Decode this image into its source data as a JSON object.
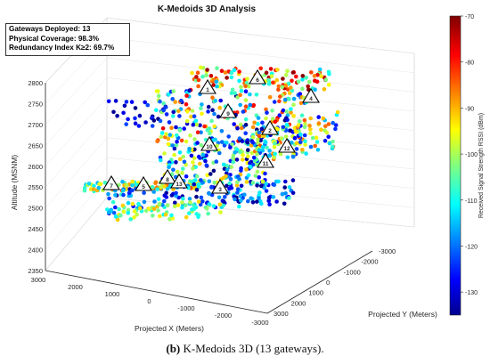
{
  "chart_data": {
    "type": "scatter",
    "title": "K-Medoids 3D Analysis",
    "xlabel": "Projected X (Meters)",
    "ylabel": "Projected Y (Meters)",
    "zlabel": "Altitude (MSNM)",
    "x_ticks": [
      "3000",
      "2000",
      "1000",
      "0",
      "-1000",
      "-2000",
      "-3000"
    ],
    "y_ticks": [
      "-3000",
      "-2000",
      "-1000",
      "0",
      "1000",
      "2000",
      "3000"
    ],
    "z_ticks": [
      "2350",
      "2400",
      "2450",
      "2500",
      "2550",
      "2600",
      "2650",
      "2700",
      "2750",
      "2800"
    ],
    "zlim": [
      2350,
      2800
    ],
    "grid": true,
    "colorbar": {
      "label": "Received Signal Strength RSSI (dBm)",
      "ticks": [
        "-70",
        "-80",
        "-90",
        "-100",
        "-110",
        "-120",
        "-130"
      ],
      "range": [
        -135,
        -70
      ],
      "colormap": "jet"
    },
    "gateways": [
      "1",
      "2",
      "3",
      "4",
      "5",
      "6",
      "7",
      "8",
      "9",
      "10",
      "11",
      "12",
      "13"
    ]
  },
  "stats": {
    "line1": "Gateways Deployed: 13",
    "line2": "Physical Coverage: 98.3%",
    "line3": "Redundancy Index K≥2: 69.7%"
  },
  "caption": {
    "label": "(b)",
    "text": " K-Medoids 3D (13 gateways)."
  }
}
